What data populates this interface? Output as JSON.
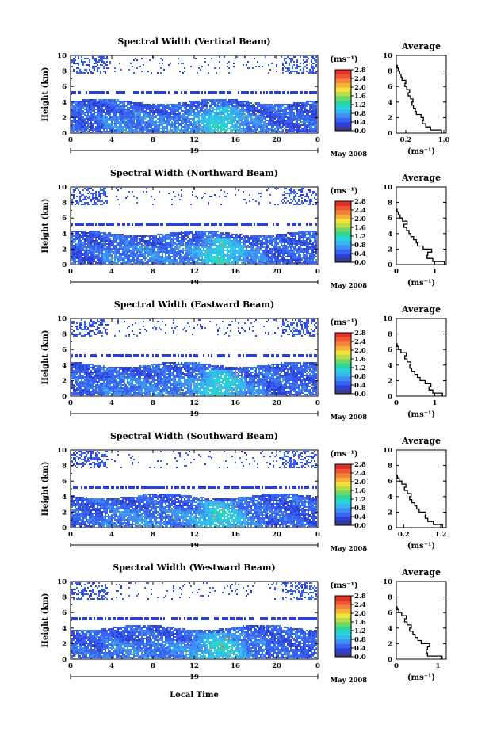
{
  "figure": {
    "date_label": "May 2008",
    "xlabel": "Local Time",
    "ylabel": "Height (km)",
    "unit": "(ms⁻¹)",
    "avg_title": "Average",
    "avg_xlabel": "(ms⁻¹)"
  },
  "colorscale": {
    "ticks": [
      "2.8",
      "2.4",
      "2.0",
      "1.6",
      "1.2",
      "0.8",
      "0.4",
      "0.0"
    ],
    "range": [
      0,
      2.8
    ],
    "colors": [
      "#3b3b87",
      "#2c3fd6",
      "#3a62f0",
      "#3f8ef2",
      "#35b7f0",
      "#29d3d8",
      "#2fd69c",
      "#6fd863",
      "#b7dc4a",
      "#f1e13c",
      "#f5b23a",
      "#f4823c",
      "#ef5535",
      "#e23327"
    ]
  },
  "chart_data": [
    {
      "type": "heatmap",
      "title": "Spectral Width (Vertical Beam)",
      "xlim": [
        0,
        24
      ],
      "ylim": [
        0,
        10
      ],
      "xticks": [
        "0",
        "4",
        "8",
        "12",
        "16",
        "20",
        "0"
      ],
      "xticks_values": [
        0,
        4,
        8,
        12,
        16,
        20,
        24
      ],
      "yticks": [
        "0",
        "2",
        "4",
        "6",
        "8",
        "10"
      ],
      "day_label": "19",
      "zrange": [
        0,
        2.8
      ],
      "avg": {
        "xticks": [
          "0.2",
          "1.0"
        ],
        "xticks_values": [
          0.2,
          1.0
        ],
        "xlim": [
          0,
          1.05
        ],
        "yticks": [
          "0",
          "2",
          "4",
          "6",
          "8",
          "10"
        ],
        "height": [
          0.2,
          0.6,
          1.0,
          1.4,
          1.8,
          2.2,
          2.6,
          3.0,
          3.4,
          3.8,
          4.2,
          4.6,
          5.0,
          5.4,
          5.8,
          6.2,
          6.6,
          7.0,
          7.4,
          7.8,
          8.2,
          8.6
        ],
        "value": [
          0.95,
          0.72,
          0.62,
          0.55,
          0.57,
          0.52,
          0.42,
          0.4,
          0.36,
          0.33,
          0.35,
          0.3,
          0.25,
          0.28,
          0.22,
          0.18,
          0.2,
          0.12,
          0.1,
          0.07,
          0.04,
          0.02
        ]
      }
    },
    {
      "type": "heatmap",
      "title": "Spectral Width (Northward Beam)",
      "xlim": [
        0,
        24
      ],
      "ylim": [
        0,
        10
      ],
      "xticks": [
        "0",
        "4",
        "8",
        "12",
        "16",
        "20",
        "0"
      ],
      "xticks_values": [
        0,
        4,
        8,
        12,
        16,
        20,
        24
      ],
      "yticks": [
        "0",
        "2",
        "4",
        "6",
        "8",
        "10"
      ],
      "day_label": "19",
      "zrange": [
        0,
        2.8
      ],
      "avg": {
        "xticks": [
          "0",
          "1"
        ],
        "xticks_values": [
          0,
          1
        ],
        "xlim": [
          0,
          1.3
        ],
        "yticks": [
          "0",
          "2",
          "4",
          "6",
          "8",
          "10"
        ],
        "height": [
          0.2,
          0.6,
          1.0,
          1.4,
          1.8,
          2.2,
          2.6,
          3.0,
          3.4,
          3.8,
          4.2,
          4.6,
          5.0,
          5.4,
          5.8,
          6.2,
          6.6,
          7.0
        ],
        "value": [
          1.25,
          0.95,
          0.8,
          0.82,
          0.92,
          0.7,
          0.55,
          0.52,
          0.45,
          0.38,
          0.33,
          0.27,
          0.2,
          0.28,
          0.16,
          0.1,
          0.05,
          0.02
        ]
      }
    },
    {
      "type": "heatmap",
      "title": "Spectral Width (Eastward Beam)",
      "xlim": [
        0,
        24
      ],
      "ylim": [
        0,
        10
      ],
      "xticks": [
        "0",
        "4",
        "8",
        "12",
        "16",
        "20",
        "0"
      ],
      "xticks_values": [
        0,
        4,
        8,
        12,
        16,
        20,
        24
      ],
      "yticks": [
        "0",
        "2",
        "4",
        "6",
        "8",
        "10"
      ],
      "day_label": "19",
      "zrange": [
        0,
        2.8
      ],
      "avg": {
        "xticks": [
          "0",
          "1"
        ],
        "xticks_values": [
          0,
          1
        ],
        "xlim": [
          0,
          1.3
        ],
        "yticks": [
          "0",
          "2",
          "4",
          "6",
          "8",
          "10"
        ],
        "height": [
          0.2,
          0.6,
          1.0,
          1.4,
          1.8,
          2.2,
          2.6,
          3.0,
          3.4,
          3.8,
          4.2,
          4.6,
          5.0,
          5.4,
          5.8,
          6.2,
          6.6
        ],
        "value": [
          1.2,
          0.95,
          0.85,
          0.9,
          0.75,
          0.62,
          0.55,
          0.48,
          0.4,
          0.35,
          0.38,
          0.28,
          0.22,
          0.26,
          0.12,
          0.06,
          0.02
        ]
      }
    },
    {
      "type": "heatmap",
      "title": "Spectral Width (Southward Beam)",
      "xlim": [
        0,
        24
      ],
      "ylim": [
        0,
        10
      ],
      "xticks": [
        "0",
        "4",
        "8",
        "12",
        "16",
        "20",
        "0"
      ],
      "xticks_values": [
        0,
        4,
        8,
        12,
        16,
        20,
        24
      ],
      "yticks": [
        "0",
        "2",
        "4",
        "6",
        "8",
        "10"
      ],
      "day_label": "19",
      "zrange": [
        0,
        2.8
      ],
      "avg": {
        "xticks": [
          "0.2",
          "1.2"
        ],
        "xticks_values": [
          0.2,
          1.2
        ],
        "xlim": [
          0,
          1.35
        ],
        "yticks": [
          "0",
          "2",
          "4",
          "6",
          "8",
          "10"
        ],
        "height": [
          0.2,
          0.6,
          1.0,
          1.4,
          1.8,
          2.2,
          2.6,
          3.0,
          3.4,
          3.8,
          4.2,
          4.6,
          5.0,
          5.4,
          5.8,
          6.2,
          6.6
        ],
        "value": [
          1.25,
          1.0,
          0.85,
          0.78,
          0.8,
          0.62,
          0.55,
          0.5,
          0.42,
          0.36,
          0.4,
          0.3,
          0.22,
          0.26,
          0.15,
          0.08,
          0.03
        ]
      }
    },
    {
      "type": "heatmap",
      "title": "Spectral Width (Westward Beam)",
      "xlim": [
        0,
        24
      ],
      "ylim": [
        0,
        10
      ],
      "xticks": [
        "0",
        "4",
        "8",
        "12",
        "16",
        "20",
        "0"
      ],
      "xticks_values": [
        0,
        4,
        8,
        12,
        16,
        20,
        24
      ],
      "yticks": [
        "0",
        "2",
        "4",
        "6",
        "8",
        "10"
      ],
      "day_label": "19",
      "zrange": [
        0,
        2.8
      ],
      "avg": {
        "xticks": [
          "0",
          "1"
        ],
        "xticks_values": [
          0,
          1
        ],
        "xlim": [
          0,
          1.2
        ],
        "yticks": [
          "0",
          "2",
          "4",
          "6",
          "8",
          "10"
        ],
        "height": [
          0.2,
          0.6,
          1.0,
          1.4,
          1.8,
          2.2,
          2.6,
          3.0,
          3.4,
          3.8,
          4.2,
          4.6,
          5.0,
          5.4,
          5.8,
          6.2,
          6.6
        ],
        "value": [
          1.1,
          0.75,
          0.72,
          0.75,
          0.8,
          0.6,
          0.52,
          0.45,
          0.4,
          0.32,
          0.36,
          0.26,
          0.2,
          0.24,
          0.13,
          0.06,
          0.02
        ]
      }
    }
  ]
}
